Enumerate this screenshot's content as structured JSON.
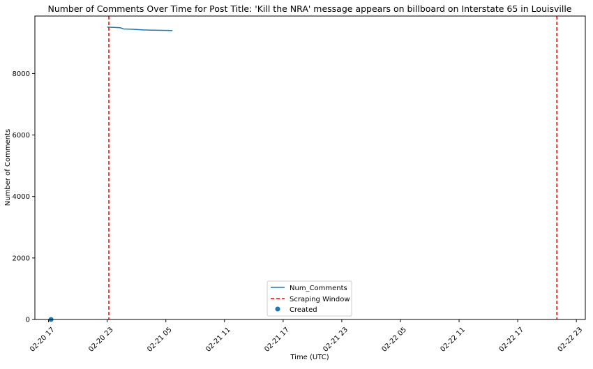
{
  "chart_data": {
    "type": "line",
    "title": "Number of Comments Over Time for Post Title: 'Kill the NRA' message appears on billboard on Interstate 65 in Louisville",
    "xlabel": "Time (UTC)",
    "ylabel": "Number of Comments",
    "x_is_datetime": true,
    "xlim": [
      "2018-02-20 15:36",
      "2018-02-22 23:55"
    ],
    "ylim": [
      0,
      9870
    ],
    "x_ticks": [
      {
        "label": "02-20 17",
        "time": "2018-02-20 17:00"
      },
      {
        "label": "02-20 23",
        "time": "2018-02-20 23:00"
      },
      {
        "label": "02-21 05",
        "time": "2018-02-21 05:00"
      },
      {
        "label": "02-21 11",
        "time": "2018-02-21 11:00"
      },
      {
        "label": "02-21 17",
        "time": "2018-02-21 17:00"
      },
      {
        "label": "02-21 23",
        "time": "2018-02-21 23:00"
      },
      {
        "label": "02-22 05",
        "time": "2018-02-22 05:00"
      },
      {
        "label": "02-22 11",
        "time": "2018-02-22 11:00"
      },
      {
        "label": "02-22 17",
        "time": "2018-02-22 17:00"
      },
      {
        "label": "02-22 23",
        "time": "2018-02-22 23:00"
      }
    ],
    "y_ticks": [
      0,
      2000,
      4000,
      6000,
      8000
    ],
    "series": [
      {
        "name": "Num_Comments",
        "kind": "line",
        "color": "#1f77b4",
        "points": [
          {
            "x": "2018-02-20 23:00",
            "y": 9510
          },
          {
            "x": "2018-02-20 23:40",
            "y": 9500
          },
          {
            "x": "2018-02-21 00:20",
            "y": 9490
          },
          {
            "x": "2018-02-21 00:40",
            "y": 9450
          },
          {
            "x": "2018-02-21 01:40",
            "y": 9440
          },
          {
            "x": "2018-02-21 02:40",
            "y": 9420
          },
          {
            "x": "2018-02-21 03:40",
            "y": 9410
          },
          {
            "x": "2018-02-21 05:40",
            "y": 9400
          }
        ]
      },
      {
        "name": "Scraping Window",
        "kind": "vline",
        "color": "#ff0000",
        "dashed": true,
        "x": [
          "2018-02-20 23:10",
          "2018-02-22 21:00"
        ]
      },
      {
        "name": "Created",
        "kind": "scatter",
        "color": "#1f77b4",
        "points": [
          {
            "x": "2018-02-20 17:15",
            "y": 0
          }
        ]
      }
    ],
    "legend": {
      "placement": "bottom-center",
      "entries": [
        "Num_Comments",
        "Scraping Window",
        "Created"
      ]
    },
    "grid": false
  }
}
